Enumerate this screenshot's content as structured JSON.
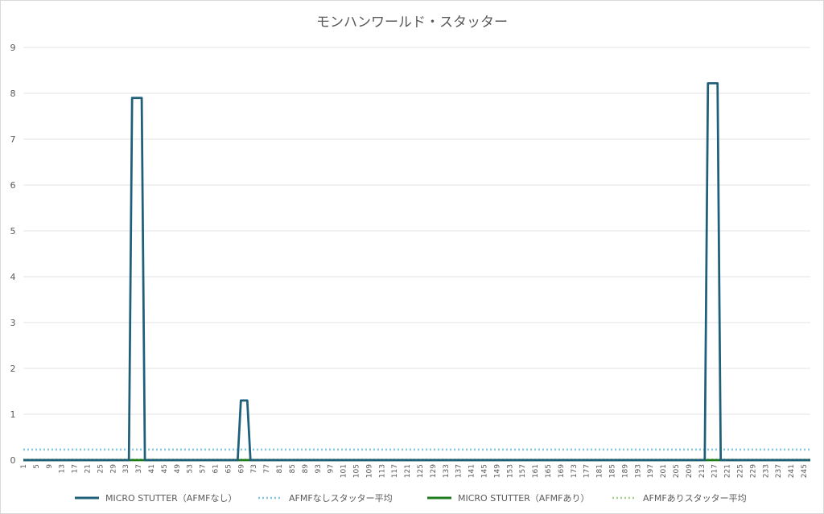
{
  "chart_data": {
    "type": "line",
    "title": "モンハンワールド・スタッター",
    "xlabel": "",
    "ylabel": "",
    "xlim": [
      1,
      247
    ],
    "ylim": [
      0,
      9
    ],
    "yticks": [
      0,
      1,
      2,
      3,
      4,
      5,
      6,
      7,
      8,
      9
    ],
    "xticks": [
      1,
      5,
      9,
      13,
      17,
      21,
      25,
      29,
      33,
      37,
      41,
      45,
      49,
      53,
      57,
      61,
      65,
      69,
      73,
      77,
      81,
      85,
      89,
      93,
      97,
      101,
      105,
      109,
      113,
      117,
      121,
      125,
      129,
      133,
      137,
      141,
      145,
      149,
      153,
      157,
      161,
      165,
      169,
      173,
      177,
      181,
      185,
      189,
      193,
      197,
      201,
      205,
      209,
      213,
      217,
      221,
      225,
      229,
      233,
      237,
      241,
      245
    ],
    "grid": true,
    "legend_position": "bottom",
    "series": [
      {
        "name": "MICRO STUTTER（AFMFなし）",
        "style": "solid",
        "color": "#1f5f7a",
        "points": [
          [
            1,
            0
          ],
          [
            34,
            0
          ],
          [
            35,
            7.9
          ],
          [
            38,
            7.9
          ],
          [
            39,
            0
          ],
          [
            68,
            0
          ],
          [
            69,
            1.3
          ],
          [
            71,
            1.3
          ],
          [
            72,
            0
          ],
          [
            214,
            0
          ],
          [
            215,
            8.22
          ],
          [
            218,
            8.22
          ],
          [
            219,
            0
          ],
          [
            247,
            0
          ]
        ]
      },
      {
        "name": "AFMFなしスタッター平均",
        "style": "dotted",
        "color": "#7ec8e3",
        "points": [
          [
            1,
            0.23
          ],
          [
            247,
            0.23
          ]
        ]
      },
      {
        "name": "MICRO STUTTER（AFMFあり）",
        "style": "solid",
        "color": "#1e7b1e",
        "points": [
          [
            1,
            0
          ],
          [
            247,
            0
          ]
        ]
      },
      {
        "name": "AFMFありスタッター平均",
        "style": "dotted",
        "color": "#a8d08d",
        "points": [
          [
            1,
            0.01
          ],
          [
            247,
            0.01
          ]
        ]
      }
    ]
  }
}
